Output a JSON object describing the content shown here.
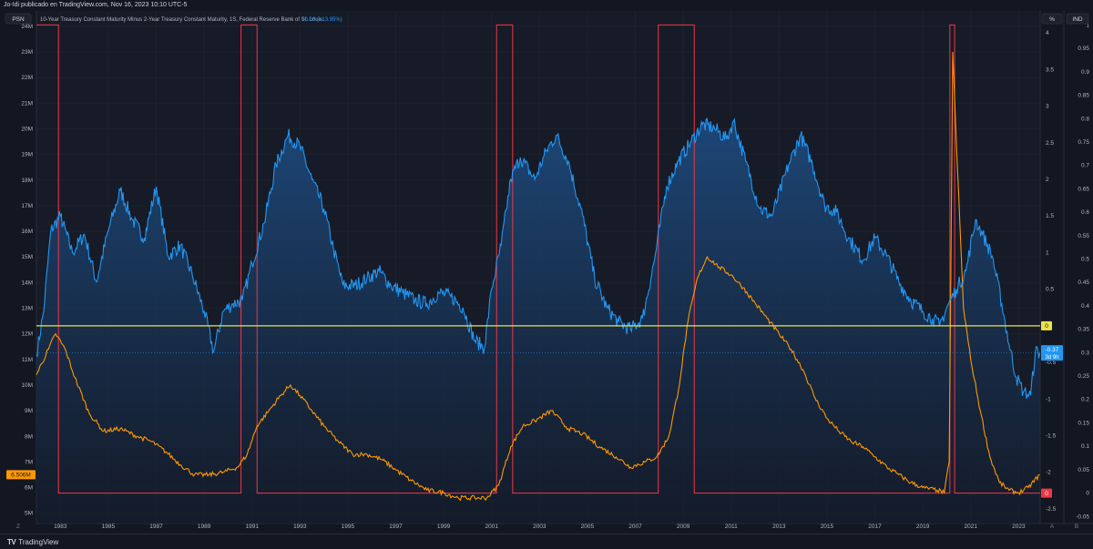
{
  "header": {
    "publisher": "Jo-Idi publicado en TradingView.com, Nov 16, 2023 10:10 UTC-5",
    "legend_title": "10-Year Treasury Constant Maturity Minus 2-Year Treasury Constant Maturity, 1S, Federal Reserve Bank of St. Louis",
    "legend_change": "+0.06 (+13.95%)"
  },
  "scales": {
    "left_badge": "PSN",
    "right_badge_1": "%",
    "right_badge_2": "IND",
    "left_marker": "6.506M",
    "blue_marker_value": "-0.37",
    "blue_marker_time": "3d 9h",
    "yellow_marker": "0",
    "red_marker": "0",
    "corner_left": "Z",
    "corner_right_a": "A",
    "corner_right_b": "B"
  },
  "footer": {
    "brand_mark": "TV",
    "brand": "TradingView"
  },
  "colors": {
    "background": "#131722",
    "spread_line": "#2196f3",
    "unemployment_line": "#ff9800",
    "recession_line": "#f23645",
    "zero_line": "#e8e44a",
    "grid": "#1e222d"
  },
  "chart_data": {
    "type": "line",
    "x_ticks": [
      "1983",
      "1985",
      "1987",
      "1989",
      "1991",
      "1993",
      "1995",
      "1997",
      "1999",
      "2001",
      "2003",
      "2005",
      "2007",
      "2009",
      "2011",
      "2013",
      "2015",
      "2017",
      "2019",
      "2021",
      "2023"
    ],
    "xlim": [
      1982.0,
      2023.9
    ],
    "axes": {
      "left": {
        "ticks": [
          "24M",
          "23M",
          "22M",
          "21M",
          "20M",
          "19M",
          "18M",
          "17M",
          "16M",
          "15M",
          "14M",
          "13M",
          "12M",
          "11M",
          "10M",
          "9M",
          "8M",
          "7M",
          "6M",
          "5M"
        ],
        "ylim": [
          4.6,
          24.6
        ]
      },
      "pct": {
        "ticks": [
          "4",
          "3.5",
          "3",
          "2.5",
          "2",
          "1.5",
          "1",
          "0.5",
          "0",
          "-0.5",
          "-1",
          "-1.5",
          "-2",
          "-2.5"
        ],
        "ylim": [
          -2.7,
          4.3
        ]
      },
      "ind": {
        "ticks": [
          "1",
          "0.95",
          "0.9",
          "0.85",
          "0.8",
          "0.75",
          "0.7",
          "0.65",
          "0.6",
          "0.55",
          "0.5",
          "0.45",
          "0.4",
          "0.35",
          "0.3",
          "0.25",
          "0.2",
          "0.15",
          "0.1",
          "0.05",
          "0",
          "-0.05"
        ],
        "ylim": [
          -0.065,
          1.03
        ]
      }
    },
    "series": [
      {
        "axis": "pct",
        "points": [
          [
            1982.0,
            -0.4
          ],
          [
            1982.3,
            0.2
          ],
          [
            1982.6,
            1.3
          ],
          [
            1983.0,
            1.5
          ],
          [
            1983.5,
            1.0
          ],
          [
            1984.0,
            1.25
          ],
          [
            1984.5,
            0.6
          ],
          [
            1985.0,
            1.3
          ],
          [
            1985.5,
            1.85
          ],
          [
            1986.0,
            1.45
          ],
          [
            1986.5,
            1.2
          ],
          [
            1987.0,
            1.9
          ],
          [
            1987.5,
            0.95
          ],
          [
            1988.0,
            1.1
          ],
          [
            1988.5,
            0.7
          ],
          [
            1989.0,
            0.2
          ],
          [
            1989.4,
            -0.35
          ],
          [
            1989.8,
            0.2
          ],
          [
            1990.2,
            0.3
          ],
          [
            1990.6,
            0.35
          ],
          [
            1991.0,
            0.85
          ],
          [
            1991.5,
            1.4
          ],
          [
            1992.0,
            2.2
          ],
          [
            1992.5,
            2.6
          ],
          [
            1993.0,
            2.45
          ],
          [
            1993.5,
            2.0
          ],
          [
            1994.0,
            1.6
          ],
          [
            1994.4,
            1.05
          ],
          [
            1994.8,
            0.55
          ],
          [
            1995.3,
            0.55
          ],
          [
            1995.8,
            0.65
          ],
          [
            1996.3,
            0.75
          ],
          [
            1996.8,
            0.55
          ],
          [
            1997.3,
            0.45
          ],
          [
            1997.8,
            0.35
          ],
          [
            1998.3,
            0.3
          ],
          [
            1998.8,
            0.45
          ],
          [
            1999.3,
            0.4
          ],
          [
            1999.8,
            0.25
          ],
          [
            2000.3,
            -0.2
          ],
          [
            2000.7,
            -0.3
          ],
          [
            2001.0,
            0.5
          ],
          [
            2001.4,
            1.1
          ],
          [
            2001.8,
            2.0
          ],
          [
            2002.2,
            2.3
          ],
          [
            2002.8,
            2.0
          ],
          [
            2003.3,
            2.4
          ],
          [
            2003.7,
            2.6
          ],
          [
            2004.2,
            2.25
          ],
          [
            2004.8,
            1.5
          ],
          [
            2005.3,
            0.65
          ],
          [
            2005.8,
            0.25
          ],
          [
            2006.3,
            0.05
          ],
          [
            2006.8,
            -0.05
          ],
          [
            2007.3,
            0.1
          ],
          [
            2007.8,
            0.9
          ],
          [
            2008.3,
            1.9
          ],
          [
            2008.8,
            2.25
          ],
          [
            2009.3,
            2.5
          ],
          [
            2009.8,
            2.75
          ],
          [
            2010.3,
            2.7
          ],
          [
            2010.8,
            2.55
          ],
          [
            2011.1,
            2.8
          ],
          [
            2011.6,
            2.25
          ],
          [
            2012.2,
            1.6
          ],
          [
            2012.7,
            1.5
          ],
          [
            2013.4,
            2.2
          ],
          [
            2013.9,
            2.6
          ],
          [
            2014.4,
            2.2
          ],
          [
            2014.9,
            1.65
          ],
          [
            2015.4,
            1.55
          ],
          [
            2015.9,
            1.2
          ],
          [
            2016.5,
            0.9
          ],
          [
            2017.0,
            1.2
          ],
          [
            2017.5,
            0.95
          ],
          [
            2018.0,
            0.6
          ],
          [
            2018.5,
            0.35
          ],
          [
            2019.0,
            0.2
          ],
          [
            2019.4,
            0.1
          ],
          [
            2019.7,
            0.0
          ],
          [
            2020.0,
            0.25
          ],
          [
            2020.4,
            0.5
          ],
          [
            2020.8,
            0.75
          ],
          [
            2021.2,
            1.45
          ],
          [
            2021.5,
            1.25
          ],
          [
            2021.9,
            0.95
          ],
          [
            2022.3,
            0.3
          ],
          [
            2022.6,
            -0.25
          ],
          [
            2022.9,
            -0.7
          ],
          [
            2023.2,
            -0.9
          ],
          [
            2023.5,
            -0.95
          ],
          [
            2023.7,
            -0.35
          ],
          [
            2023.88,
            -0.37
          ]
        ]
      },
      {
        "axis": "left",
        "points": [
          [
            1982.0,
            10.4
          ],
          [
            1982.5,
            11.4
          ],
          [
            1982.8,
            12.0
          ],
          [
            1983.2,
            11.4
          ],
          [
            1983.6,
            10.3
          ],
          [
            1984.2,
            8.9
          ],
          [
            1984.8,
            8.2
          ],
          [
            1985.5,
            8.3
          ],
          [
            1986.2,
            8.0
          ],
          [
            1986.8,
            7.8
          ],
          [
            1987.4,
            7.4
          ],
          [
            1988.0,
            6.9
          ],
          [
            1988.6,
            6.5
          ],
          [
            1989.2,
            6.5
          ],
          [
            1989.8,
            6.6
          ],
          [
            1990.4,
            6.8
          ],
          [
            1990.8,
            7.3
          ],
          [
            1991.2,
            8.4
          ],
          [
            1991.7,
            9.0
          ],
          [
            1992.2,
            9.6
          ],
          [
            1992.6,
            10.0
          ],
          [
            1993.0,
            9.6
          ],
          [
            1993.5,
            9.0
          ],
          [
            1994.0,
            8.4
          ],
          [
            1994.6,
            7.8
          ],
          [
            1995.2,
            7.3
          ],
          [
            1995.8,
            7.3
          ],
          [
            1996.4,
            7.1
          ],
          [
            1997.0,
            6.7
          ],
          [
            1997.6,
            6.3
          ],
          [
            1998.3,
            5.9
          ],
          [
            1999.0,
            5.8
          ],
          [
            1999.6,
            5.6
          ],
          [
            2000.3,
            5.6
          ],
          [
            2000.8,
            5.6
          ],
          [
            2001.3,
            6.1
          ],
          [
            2001.8,
            7.6
          ],
          [
            2002.3,
            8.4
          ],
          [
            2002.8,
            8.6
          ],
          [
            2003.5,
            9.0
          ],
          [
            2004.2,
            8.3
          ],
          [
            2004.8,
            8.1
          ],
          [
            2005.5,
            7.6
          ],
          [
            2006.2,
            7.2
          ],
          [
            2006.8,
            6.8
          ],
          [
            2007.4,
            7.0
          ],
          [
            2007.9,
            7.2
          ],
          [
            2008.4,
            8.0
          ],
          [
            2008.8,
            9.8
          ],
          [
            2009.2,
            12.5
          ],
          [
            2009.6,
            14.2
          ],
          [
            2010.0,
            15.0
          ],
          [
            2010.5,
            14.6
          ],
          [
            2011.0,
            14.3
          ],
          [
            2011.5,
            13.8
          ],
          [
            2012.0,
            13.2
          ],
          [
            2012.5,
            12.6
          ],
          [
            2013.0,
            12.0
          ],
          [
            2013.5,
            11.4
          ],
          [
            2014.0,
            10.6
          ],
          [
            2014.5,
            9.5
          ],
          [
            2015.0,
            8.7
          ],
          [
            2015.5,
            8.2
          ],
          [
            2016.0,
            7.8
          ],
          [
            2016.5,
            7.6
          ],
          [
            2017.0,
            7.2
          ],
          [
            2017.5,
            6.8
          ],
          [
            2018.0,
            6.5
          ],
          [
            2018.5,
            6.2
          ],
          [
            2019.0,
            6.0
          ],
          [
            2019.6,
            5.9
          ],
          [
            2019.9,
            5.8
          ],
          [
            2020.1,
            7.0
          ],
          [
            2020.25,
            23.0
          ],
          [
            2020.4,
            19.5
          ],
          [
            2020.7,
            13.0
          ],
          [
            2021.0,
            11.0
          ],
          [
            2021.4,
            9.0
          ],
          [
            2021.8,
            7.2
          ],
          [
            2022.2,
            6.2
          ],
          [
            2022.6,
            5.9
          ],
          [
            2023.0,
            5.8
          ],
          [
            2023.4,
            6.0
          ],
          [
            2023.88,
            6.5
          ]
        ]
      }
    ],
    "recession_periods": [
      [
        1982.0,
        1982.92
      ],
      [
        1990.54,
        1991.21
      ],
      [
        2001.21,
        2001.88
      ],
      [
        2007.96,
        2009.46
      ],
      [
        2020.13,
        2020.33
      ]
    ]
  }
}
